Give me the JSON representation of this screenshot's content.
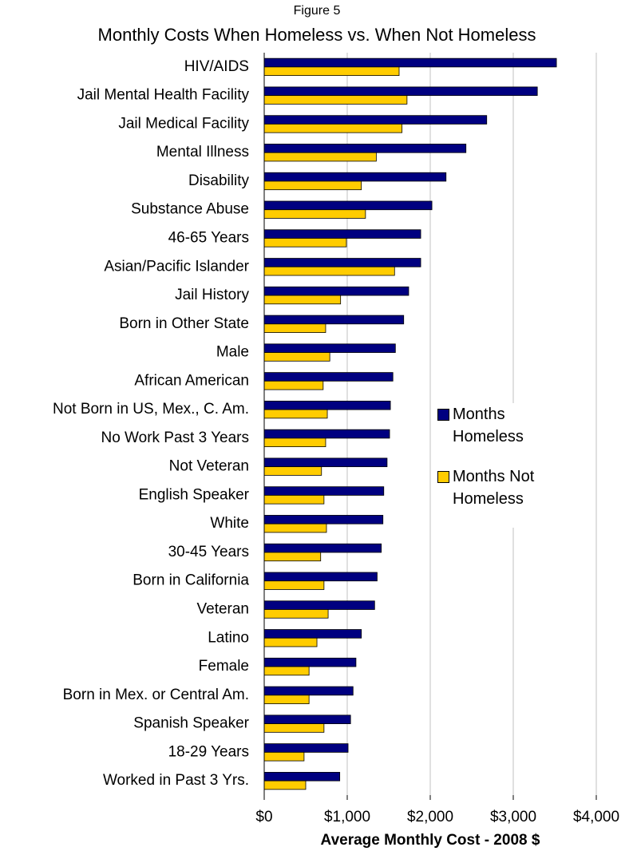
{
  "chart_data": {
    "type": "hbar",
    "subtitle": "Figure 5",
    "title": "Monthly Costs When Homeless vs. When Not Homeless",
    "xlabel": "Average Monthly Cost - 2008 $",
    "categories": [
      "HIV/AIDS",
      "Jail Mental Health Facility",
      "Jail Medical Facility",
      "Mental Illness",
      "Disability",
      "Substance Abuse",
      "46-65 Years",
      "Asian/Pacific Islander",
      "Jail History",
      "Born in Other State",
      "Male",
      "African American",
      "Not Born in US, Mex., C. Am.",
      "No Work Past 3 Years",
      "Not Veteran",
      "English Speaker",
      "White",
      "30-45 Years",
      "Born in California",
      "Veteran",
      "Latino",
      "Female",
      "Born in Mex. or Central Am.",
      "Spanish Speaker",
      "18-29 Years",
      "Worked in Past 3 Yrs."
    ],
    "series": [
      {
        "name": "Months Homeless",
        "color": "#000080",
        "values": [
          3520,
          3290,
          2680,
          2430,
          2190,
          2020,
          1885,
          1885,
          1740,
          1680,
          1580,
          1550,
          1520,
          1510,
          1480,
          1440,
          1430,
          1410,
          1360,
          1330,
          1170,
          1105,
          1070,
          1040,
          1010,
          910
        ]
      },
      {
        "name": "Months Not Homeless",
        "color": "#FFCC00",
        "values": [
          1625,
          1720,
          1660,
          1350,
          1170,
          1220,
          990,
          1570,
          920,
          740,
          790,
          710,
          760,
          740,
          690,
          720,
          750,
          680,
          720,
          770,
          635,
          540,
          540,
          720,
          480,
          500
        ]
      }
    ],
    "xlim": [
      0,
      4000
    ],
    "xticks": [
      {
        "value": 0,
        "label": "$0"
      },
      {
        "value": 1000,
        "label": "$1,000"
      },
      {
        "value": 2000,
        "label": "$2,000"
      },
      {
        "value": 3000,
        "label": "$3,000"
      },
      {
        "value": 4000,
        "label": "$4,000"
      }
    ],
    "grid": true,
    "legend": "right"
  }
}
